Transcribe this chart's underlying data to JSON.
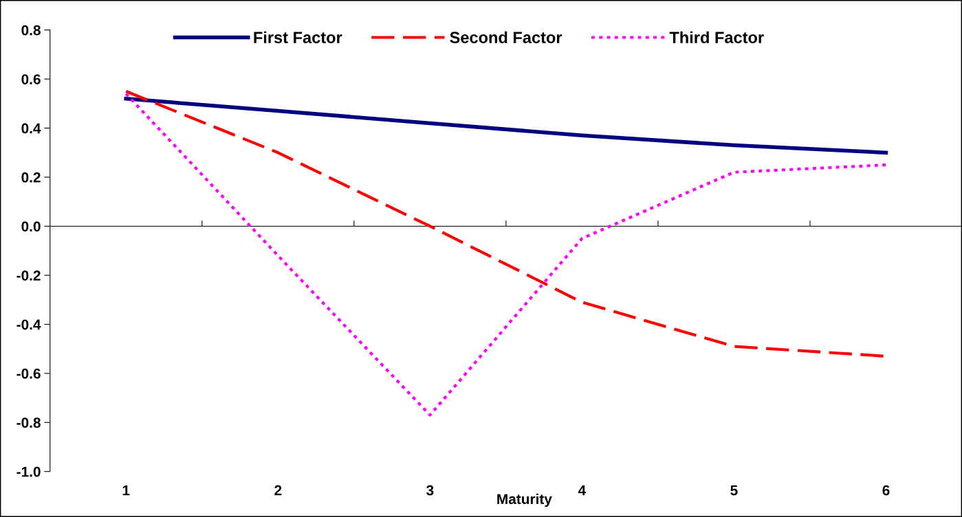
{
  "chart_data": {
    "type": "line",
    "xlabel": "Maturity",
    "categories": [
      "1",
      "2",
      "3",
      "4",
      "5",
      "6"
    ],
    "series": [
      {
        "name": "First Factor",
        "color": "#000080",
        "line_style": "solid",
        "values": [
          0.52,
          0.47,
          0.42,
          0.37,
          0.33,
          0.3
        ]
      },
      {
        "name": "Second Factor",
        "color": "#ff0000",
        "line_style": "dashed",
        "values": [
          0.55,
          0.3,
          0.0,
          -0.31,
          -0.49,
          -0.53
        ]
      },
      {
        "name": "Third Factor",
        "color": "#ff00ff",
        "line_style": "dotted",
        "values": [
          0.54,
          -0.12,
          -0.77,
          -0.05,
          0.22,
          0.25
        ]
      }
    ],
    "ylim": [
      -1.0,
      0.8
    ],
    "yticks": [
      {
        "value": -1.0,
        "label": "-1.0"
      },
      {
        "value": -0.8,
        "label": "-0.8"
      },
      {
        "value": -0.6,
        "label": "-0.6"
      },
      {
        "value": -0.4,
        "label": "-0.4"
      },
      {
        "value": -0.2,
        "label": "-0.2"
      },
      {
        "value": 0.0,
        "label": "0.0"
      },
      {
        "value": 0.2,
        "label": "0.2"
      },
      {
        "value": 0.4,
        "label": "0.4"
      },
      {
        "value": 0.6,
        "label": "0.6"
      },
      {
        "value": 0.8,
        "label": "0.8"
      }
    ],
    "legend": "top",
    "marker": "none"
  }
}
